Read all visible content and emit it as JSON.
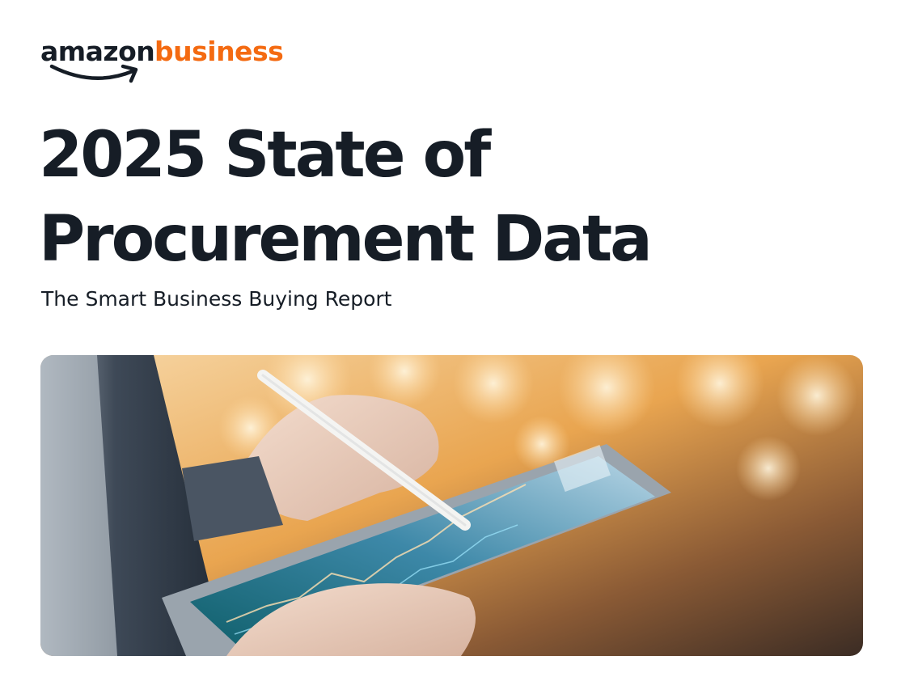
{
  "brand": {
    "word_primary": "amazon",
    "word_secondary": "business",
    "primary_color": "#161d26",
    "accent_color": "#f46a11",
    "logo_icon": "amazon-smile-arrow-icon"
  },
  "cover": {
    "title_line1": "2025 State of",
    "title_line2": "Procurement Data",
    "subtitle": "The Smart Business Buying Report"
  },
  "hero_image": {
    "subject": "hands-with-stylus-on-tablet-photo",
    "palette": [
      "#f5c27a",
      "#e8932f",
      "#5a4a3f",
      "#1c2a3a"
    ]
  }
}
